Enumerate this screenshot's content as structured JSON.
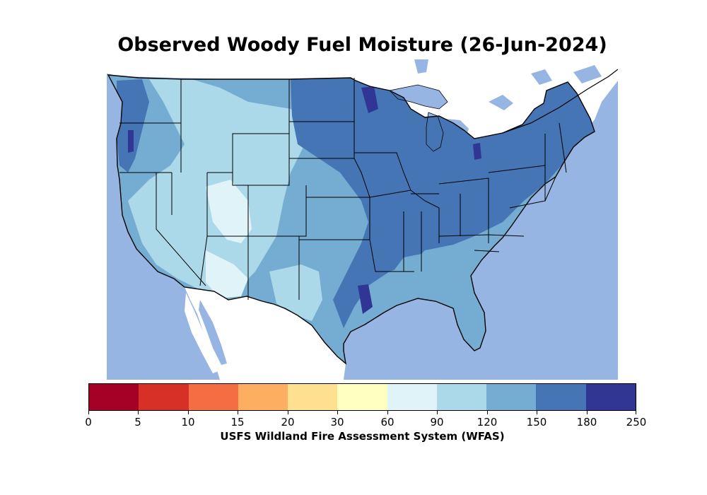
{
  "title": "Observed Woody Fuel Moisture (26-Jun-2024)",
  "colorbar": {
    "label": "USFS Wildland Fire Assessment System (WFAS)",
    "ticks": [
      "0",
      "5",
      "10",
      "15",
      "20",
      "30",
      "60",
      "90",
      "120",
      "150",
      "180",
      "250"
    ],
    "colors": [
      "#a50026",
      "#d73027",
      "#f46d43",
      "#fdae61",
      "#fee090",
      "#ffffbf",
      "#e0f3f8",
      "#abd9e9",
      "#74add1",
      "#4575b4",
      "#313695"
    ]
  },
  "map": {
    "ocean_color": "#97b5e3",
    "land_outside_color": "#ffffff"
  }
}
